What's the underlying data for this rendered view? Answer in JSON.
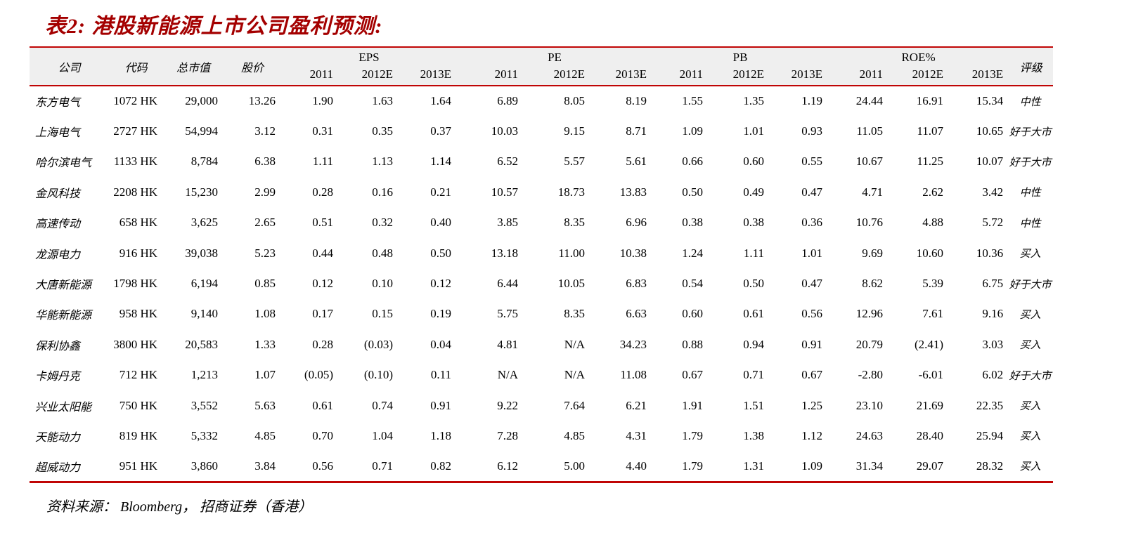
{
  "title": "表2:  港股新能源上市公司盈利预测:",
  "source": {
    "label": "资料来源：  Bloomberg，  招商证券（香港）"
  },
  "colors": {
    "accent_red_line": "#c00505",
    "title_red": "#a40000",
    "header_bg": "#efefef"
  },
  "table": {
    "headers": {
      "company": "公司",
      "code": "代码",
      "mcap": "总市值",
      "price": "股价",
      "groups": [
        "EPS",
        "PE",
        "PB",
        "ROE%"
      ],
      "years": [
        "2011",
        "2012E",
        "2013E"
      ],
      "rating": "评级"
    },
    "rows": [
      {
        "company": "东方电气",
        "code": "1072 HK",
        "mcap": "29,000",
        "price": "13.26",
        "eps": [
          "1.90",
          "1.63",
          "1.64"
        ],
        "pe": [
          "6.89",
          "8.05",
          "8.19"
        ],
        "pb": [
          "1.55",
          "1.35",
          "1.19"
        ],
        "roe": [
          "24.44",
          "16.91",
          "15.34"
        ],
        "rating": "中性"
      },
      {
        "company": "上海电气",
        "code": "2727 HK",
        "mcap": "54,994",
        "price": "3.12",
        "eps": [
          "0.31",
          "0.35",
          "0.37"
        ],
        "pe": [
          "10.03",
          "9.15",
          "8.71"
        ],
        "pb": [
          "1.09",
          "1.01",
          "0.93"
        ],
        "roe": [
          "11.05",
          "11.07",
          "10.65"
        ],
        "rating": "好于大市"
      },
      {
        "company": "哈尔滨电气",
        "code": "1133 HK",
        "mcap": "8,784",
        "price": "6.38",
        "eps": [
          "1.11",
          "1.13",
          "1.14"
        ],
        "pe": [
          "6.52",
          "5.57",
          "5.61"
        ],
        "pb": [
          "0.66",
          "0.60",
          "0.55"
        ],
        "roe": [
          "10.67",
          "11.25",
          "10.07"
        ],
        "rating": "好于大市"
      },
      {
        "company": "金风科技",
        "code": "2208 HK",
        "mcap": "15,230",
        "price": "2.99",
        "eps": [
          "0.28",
          "0.16",
          "0.21"
        ],
        "pe": [
          "10.57",
          "18.73",
          "13.83"
        ],
        "pb": [
          "0.50",
          "0.49",
          "0.47"
        ],
        "roe": [
          "4.71",
          "2.62",
          "3.42"
        ],
        "rating": "中性"
      },
      {
        "company": "高速传动",
        "code": "658 HK",
        "mcap": "3,625",
        "price": "2.65",
        "eps": [
          "0.51",
          "0.32",
          "0.40"
        ],
        "pe": [
          "3.85",
          "8.35",
          "6.96"
        ],
        "pb": [
          "0.38",
          "0.38",
          "0.36"
        ],
        "roe": [
          "10.76",
          "4.88",
          "5.72"
        ],
        "rating": "中性"
      },
      {
        "company": "龙源电力",
        "code": "916 HK",
        "mcap": "39,038",
        "price": "5.23",
        "eps": [
          "0.44",
          "0.48",
          "0.50"
        ],
        "pe": [
          "13.18",
          "11.00",
          "10.38"
        ],
        "pb": [
          "1.24",
          "1.11",
          "1.01"
        ],
        "roe": [
          "9.69",
          "10.60",
          "10.36"
        ],
        "rating": "买入"
      },
      {
        "company": "大唐新能源",
        "code": "1798 HK",
        "mcap": "6,194",
        "price": "0.85",
        "eps": [
          "0.12",
          "0.10",
          "0.12"
        ],
        "pe": [
          "6.44",
          "10.05",
          "6.83"
        ],
        "pb": [
          "0.54",
          "0.50",
          "0.47"
        ],
        "roe": [
          "8.62",
          "5.39",
          "6.75"
        ],
        "rating": "好于大市"
      },
      {
        "company": "华能新能源",
        "code": "958 HK",
        "mcap": "9,140",
        "price": "1.08",
        "eps": [
          "0.17",
          "0.15",
          "0.19"
        ],
        "pe": [
          "5.75",
          "8.35",
          "6.63"
        ],
        "pb": [
          "0.60",
          "0.61",
          "0.56"
        ],
        "roe": [
          "12.96",
          "7.61",
          "9.16"
        ],
        "rating": "买入"
      },
      {
        "company": "保利协鑫",
        "code": "3800 HK",
        "mcap": "20,583",
        "price": "1.33",
        "eps": [
          "0.28",
          "(0.03)",
          "0.04"
        ],
        "pe": [
          "4.81",
          "N/A",
          "34.23"
        ],
        "pb": [
          "0.88",
          "0.94",
          "0.91"
        ],
        "roe": [
          "20.79",
          "(2.41)",
          "3.03"
        ],
        "rating": "买入"
      },
      {
        "company": "卡姆丹克",
        "code": "712 HK",
        "mcap": "1,213",
        "price": "1.07",
        "eps": [
          "(0.05)",
          "(0.10)",
          "0.11"
        ],
        "pe": [
          "N/A",
          "N/A",
          "11.08"
        ],
        "pb": [
          "0.67",
          "0.71",
          "0.67"
        ],
        "roe": [
          "-2.80",
          "-6.01",
          "6.02"
        ],
        "rating": "好于大市"
      },
      {
        "company": "兴业太阳能",
        "code": "750 HK",
        "mcap": "3,552",
        "price": "5.63",
        "eps": [
          "0.61",
          "0.74",
          "0.91"
        ],
        "pe": [
          "9.22",
          "7.64",
          "6.21"
        ],
        "pb": [
          "1.91",
          "1.51",
          "1.25"
        ],
        "roe": [
          "23.10",
          "21.69",
          "22.35"
        ],
        "rating": "买入"
      },
      {
        "company": "天能动力",
        "code": "819 HK",
        "mcap": "5,332",
        "price": "4.85",
        "eps": [
          "0.70",
          "1.04",
          "1.18"
        ],
        "pe": [
          "7.28",
          "4.85",
          "4.31"
        ],
        "pb": [
          "1.79",
          "1.38",
          "1.12"
        ],
        "roe": [
          "24.63",
          "28.40",
          "25.94"
        ],
        "rating": "买入"
      },
      {
        "company": "超威动力",
        "code": "951 HK",
        "mcap": "3,860",
        "price": "3.84",
        "eps": [
          "0.56",
          "0.71",
          "0.82"
        ],
        "pe": [
          "6.12",
          "5.00",
          "4.40"
        ],
        "pb": [
          "1.79",
          "1.31",
          "1.09"
        ],
        "roe": [
          "31.34",
          "29.07",
          "28.32"
        ],
        "rating": "买入"
      }
    ]
  }
}
